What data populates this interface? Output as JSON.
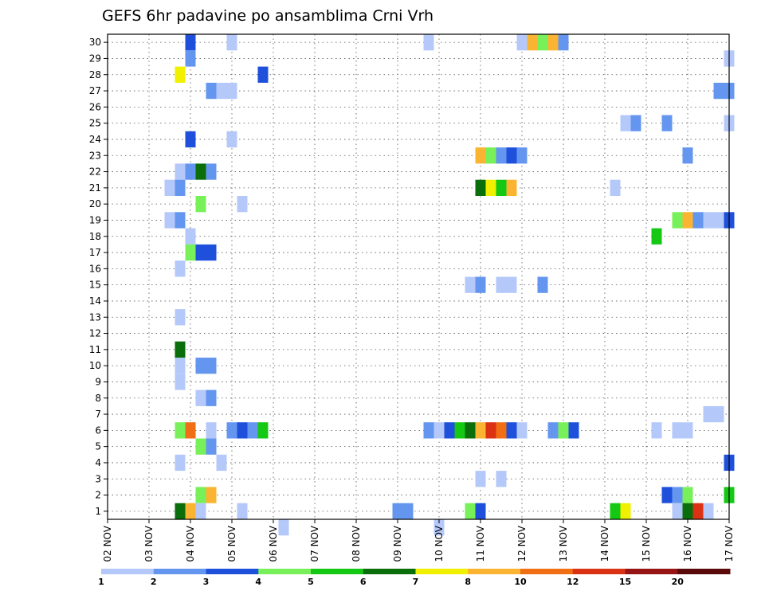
{
  "chart_data": {
    "type": "heatmap",
    "title": "GEFS 6hr padavine po ansamblima Crni Vrh",
    "x_ticks": [
      "02 NOV",
      "03 NOV",
      "04 NOV",
      "05 NOV",
      "06 NOV",
      "07 NOV",
      "08 NOV",
      "09 NOV",
      "10 NOV",
      "11 NOV",
      "12 NOV",
      "13 NOV",
      "14 NOV",
      "15 NOV",
      "16 NOV",
      "17 NOV"
    ],
    "xlim": [
      0,
      60
    ],
    "x_step": "6hr",
    "y_ticks": [
      "1",
      "2",
      "3",
      "4",
      "5",
      "6",
      "7",
      "8",
      "9",
      "10",
      "11",
      "12",
      "13",
      "14",
      "15",
      "16",
      "17",
      "18",
      "19",
      "20",
      "21",
      "22",
      "23",
      "24",
      "25",
      "26",
      "27",
      "28",
      "29",
      "30"
    ],
    "ylim": [
      0.5,
      30.5
    ],
    "grid": true,
    "colorbar": {
      "colors": [
        "#b4c8fa",
        "#6496f0",
        "#1e50dc",
        "#78f05a",
        "#14c814",
        "#0a6e0a",
        "#f0f000",
        "#fab432",
        "#f06e14",
        "#dc3214",
        "#961414",
        "#5a0a0a"
      ],
      "labels": [
        {
          "value_index": 0,
          "text": "1"
        },
        {
          "value_index": 1,
          "text": "2"
        },
        {
          "value_index": 2,
          "text": "3"
        },
        {
          "value_index": 3,
          "text": "4"
        },
        {
          "value_index": 4,
          "text": "5"
        },
        {
          "value_index": 5,
          "text": "6"
        },
        {
          "value_index": 6,
          "text": "7"
        },
        {
          "value_index": 7,
          "text": "8"
        },
        {
          "value_index": 8,
          "text": "10"
        },
        {
          "value_index": 9,
          "text": "12"
        },
        {
          "value_index": 10,
          "text": "15"
        },
        {
          "value_index": 11,
          "text": "20"
        }
      ]
    },
    "cells": [
      [
        30,
        8,
        3
      ],
      [
        30,
        12,
        1
      ],
      [
        30,
        31,
        1
      ],
      [
        30,
        40,
        1
      ],
      [
        30,
        41,
        8
      ],
      [
        30,
        42,
        4
      ],
      [
        30,
        43,
        8
      ],
      [
        30,
        44,
        2
      ],
      [
        29,
        8,
        2
      ],
      [
        29,
        60,
        1
      ],
      [
        28,
        7,
        7
      ],
      [
        28,
        15,
        3
      ],
      [
        27,
        10,
        2
      ],
      [
        27,
        11,
        1
      ],
      [
        27,
        12,
        1
      ],
      [
        27,
        59,
        2
      ],
      [
        27,
        60,
        2
      ],
      [
        25,
        50,
        1
      ],
      [
        25,
        51,
        2
      ],
      [
        25,
        54,
        2
      ],
      [
        25,
        60,
        1
      ],
      [
        24,
        8,
        3
      ],
      [
        24,
        12,
        1
      ],
      [
        23,
        36,
        8
      ],
      [
        23,
        37,
        4
      ],
      [
        23,
        38,
        2
      ],
      [
        23,
        39,
        3
      ],
      [
        23,
        40,
        2
      ],
      [
        23,
        56,
        2
      ],
      [
        22,
        7,
        1
      ],
      [
        22,
        8,
        2
      ],
      [
        22,
        9,
        6
      ],
      [
        22,
        10,
        2
      ],
      [
        21,
        6,
        1
      ],
      [
        21,
        7,
        2
      ],
      [
        21,
        36,
        6
      ],
      [
        21,
        37,
        7
      ],
      [
        21,
        38,
        5
      ],
      [
        21,
        39,
        8
      ],
      [
        21,
        49,
        1
      ],
      [
        20,
        9,
        4
      ],
      [
        20,
        13,
        1
      ],
      [
        19,
        6,
        1
      ],
      [
        19,
        7,
        2
      ],
      [
        19,
        55,
        4
      ],
      [
        19,
        56,
        8
      ],
      [
        19,
        57,
        2
      ],
      [
        19,
        58,
        1
      ],
      [
        19,
        59,
        1
      ],
      [
        19,
        60,
        3
      ],
      [
        18,
        8,
        1
      ],
      [
        18,
        53,
        5
      ],
      [
        17,
        8,
        4
      ],
      [
        17,
        9,
        3
      ],
      [
        17,
        10,
        3
      ],
      [
        16,
        7,
        1
      ],
      [
        15,
        35,
        1
      ],
      [
        15,
        36,
        2
      ],
      [
        15,
        38,
        1
      ],
      [
        15,
        39,
        1
      ],
      [
        15,
        42,
        2
      ],
      [
        13,
        7,
        1
      ],
      [
        11,
        7,
        6
      ],
      [
        10,
        7,
        1
      ],
      [
        10,
        9,
        2
      ],
      [
        10,
        10,
        2
      ],
      [
        9,
        7,
        1
      ],
      [
        8,
        9,
        1
      ],
      [
        8,
        10,
        2
      ],
      [
        7,
        58,
        1
      ],
      [
        7,
        59,
        1
      ],
      [
        6,
        7,
        4
      ],
      [
        6,
        8,
        9
      ],
      [
        6,
        10,
        1
      ],
      [
        6,
        12,
        2
      ],
      [
        6,
        13,
        3
      ],
      [
        6,
        14,
        2
      ],
      [
        6,
        15,
        5
      ],
      [
        6,
        31,
        2
      ],
      [
        6,
        32,
        1
      ],
      [
        6,
        33,
        3
      ],
      [
        6,
        34,
        5
      ],
      [
        6,
        35,
        6
      ],
      [
        6,
        36,
        8
      ],
      [
        6,
        37,
        10
      ],
      [
        6,
        38,
        9
      ],
      [
        6,
        39,
        3
      ],
      [
        6,
        40,
        1
      ],
      [
        6,
        43,
        2
      ],
      [
        6,
        44,
        4
      ],
      [
        6,
        45,
        3
      ],
      [
        6,
        53,
        1
      ],
      [
        6,
        55,
        1
      ],
      [
        6,
        56,
        1
      ],
      [
        5,
        9,
        4
      ],
      [
        5,
        10,
        2
      ],
      [
        4,
        7,
        1
      ],
      [
        4,
        11,
        1
      ],
      [
        4,
        60,
        3
      ],
      [
        3,
        36,
        1
      ],
      [
        3,
        38,
        1
      ],
      [
        2,
        9,
        4
      ],
      [
        2,
        10,
        8
      ],
      [
        2,
        54,
        3
      ],
      [
        2,
        55,
        2
      ],
      [
        2,
        56,
        4
      ],
      [
        2,
        60,
        5
      ],
      [
        1,
        7,
        6
      ],
      [
        1,
        8,
        8
      ],
      [
        1,
        9,
        1
      ],
      [
        1,
        13,
        1
      ],
      [
        1,
        28,
        2
      ],
      [
        1,
        29,
        2
      ],
      [
        1,
        35,
        4
      ],
      [
        1,
        36,
        3
      ],
      [
        1,
        49,
        5
      ],
      [
        1,
        50,
        7
      ],
      [
        1,
        55,
        1
      ],
      [
        1,
        56,
        6
      ],
      [
        1,
        57,
        10
      ],
      [
        1,
        58,
        1
      ],
      [
        0,
        17,
        1
      ],
      [
        0,
        32,
        1
      ]
    ]
  }
}
